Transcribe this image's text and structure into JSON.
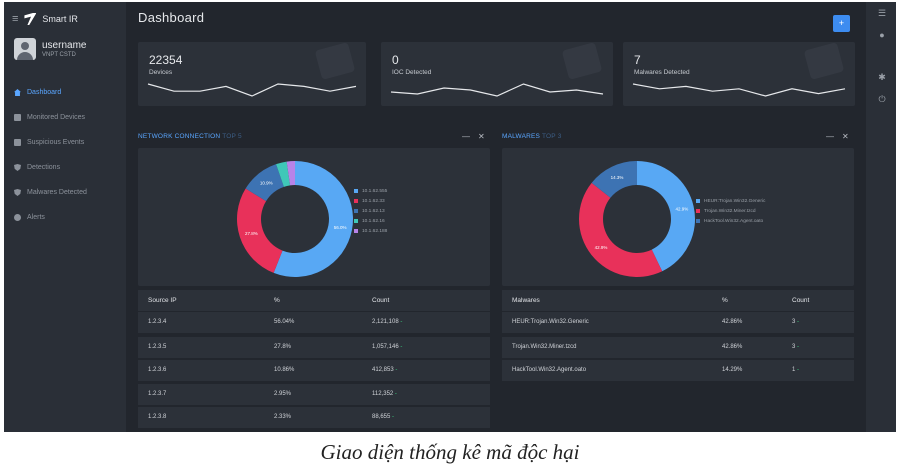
{
  "brand": {
    "name": "Smart IR"
  },
  "user": {
    "name": "username",
    "role": "VNPT CSTD"
  },
  "nav": [
    {
      "label": "Dashboard",
      "icon": "home-icon",
      "active": true
    },
    {
      "label": "Monitored Devices",
      "icon": "monitor-icon"
    },
    {
      "label": "Suspicious Events",
      "icon": "document-icon"
    },
    {
      "label": "Detections",
      "icon": "shield-icon"
    },
    {
      "label": "Malwares Detected",
      "icon": "shield-icon"
    },
    {
      "label": "Alerts",
      "icon": "alert-icon"
    }
  ],
  "header": {
    "title": "Dashboard",
    "add_icon": "+"
  },
  "rail_icons": [
    "grid-icon",
    "bell-icon",
    "gear-icon",
    "power-icon"
  ],
  "stats": [
    {
      "value": "22354",
      "label": "Devices",
      "icon": "router-icon",
      "trend": [
        7,
        4,
        4,
        6,
        2,
        7,
        6,
        4,
        6
      ]
    },
    {
      "value": "0",
      "label": "IOC Detected",
      "icon": "gear-icon",
      "trend": [
        4,
        3,
        6,
        5,
        2,
        8,
        4,
        5,
        3
      ]
    },
    {
      "value": "7",
      "label": "Malwares Detected",
      "icon": "gear-icon",
      "trend": [
        7,
        5,
        6,
        4,
        5,
        2,
        5,
        3,
        5
      ]
    }
  ],
  "network": {
    "title": "NETWORK CONNECTION",
    "subtitle": "TOP 5",
    "minimize": "—",
    "close": "✕",
    "chart_data": {
      "type": "pie",
      "categories": [
        "10.1.62.555",
        "10.1.62.33",
        "10.1.62.13",
        "10.1.62.16",
        "10.1.62.188"
      ],
      "values": [
        56.0,
        27.8,
        10.9,
        3.0,
        2.3
      ],
      "labels": [
        "56.0%",
        "27.8%",
        "10.9%",
        "",
        ""
      ],
      "colors": [
        "#58a8f4",
        "#e8315a",
        "#3d73b3",
        "#3fc7b8",
        "#b783e8"
      ]
    },
    "table": {
      "headers": [
        "Source IP",
        "%",
        "Count"
      ],
      "rows": [
        {
          "ip": "1.2.3.4",
          "pct": "56.04%",
          "count": "2,121,108",
          "delta": "-"
        },
        {
          "ip": "1.2.3.5",
          "pct": "27.8%",
          "count": "1,057,146",
          "delta": "-"
        },
        {
          "ip": "1.2.3.6",
          "pct": "10.86%",
          "count": "412,853",
          "delta": "-"
        },
        {
          "ip": "1.2.3.7",
          "pct": "2.95%",
          "count": "112,352",
          "delta": "-"
        },
        {
          "ip": "1.2.3.8",
          "pct": "2.33%",
          "count": "88,655",
          "delta": "-"
        }
      ]
    }
  },
  "malwares": {
    "title": "MALWARES",
    "subtitle": "TOP 3",
    "minimize": "—",
    "close": "✕",
    "chart_data": {
      "type": "pie",
      "categories": [
        "HEUR:Trojan.Win32.Generic",
        "Trojan.Win32.Miner.tzcd",
        "HackTool.Win32.Agent.oato"
      ],
      "values": [
        42.86,
        42.86,
        14.29
      ],
      "labels": [
        "42.9%",
        "42.9%",
        "14.3%"
      ],
      "colors": [
        "#58a8f4",
        "#e8315a",
        "#3d73b3"
      ]
    },
    "table": {
      "headers": [
        "Malwares",
        "%",
        "Count"
      ],
      "rows": [
        {
          "name": "HEUR:Trojan.Win32.Generic",
          "pct": "42.86%",
          "count": "3",
          "delta": "-"
        },
        {
          "name": "Trojan.Win32.Miner.tzcd",
          "pct": "42.86%",
          "count": "3",
          "delta": "-"
        },
        {
          "name": "HackTool.Win32.Agent.oato",
          "pct": "14.29%",
          "count": "1",
          "delta": "-"
        }
      ]
    }
  },
  "caption": "Giao diện thống kê mã độc hại"
}
